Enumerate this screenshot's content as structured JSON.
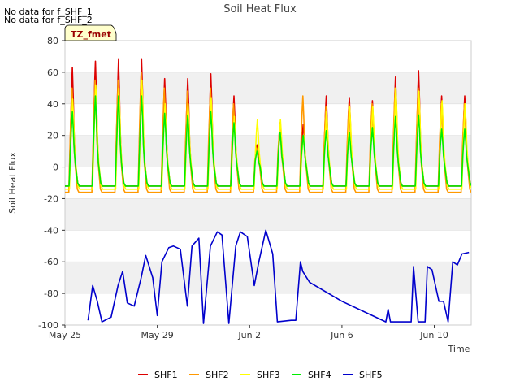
{
  "notes": [
    "No data for f_SHF_1",
    "No data for f_SHF_2"
  ],
  "chart_data": {
    "type": "line",
    "title": "Soil Heat Flux",
    "xlabel": "Time",
    "ylabel": "Soil Heat Flux",
    "annotation_box": "TZ_fmet",
    "ylim": [
      -100,
      80
    ],
    "yticks": [
      80,
      60,
      40,
      20,
      0,
      -20,
      -40,
      -60,
      -80,
      -100
    ],
    "xlim": [
      0,
      17.6
    ],
    "xticks": [
      {
        "day": 0,
        "label": "May 25"
      },
      {
        "day": 4,
        "label": "May 29"
      },
      {
        "day": 8,
        "label": "Jun 2"
      },
      {
        "day": 12,
        "label": "Jun 6"
      },
      {
        "day": 16,
        "label": "Jun 10"
      }
    ],
    "days": [
      0.3,
      1.3,
      2.3,
      3.3,
      4.3,
      5.3,
      6.3,
      7.3,
      8.3,
      9.3,
      10.3,
      11.3,
      12.3,
      13.3,
      14.3,
      15.3,
      16.3,
      17.3
    ],
    "series": [
      {
        "name": "SHF1",
        "color": "#dd0000",
        "min": -12,
        "peaks": [
          63,
          67,
          68,
          68,
          56,
          56,
          59,
          45,
          14,
          28,
          27,
          45,
          44,
          42,
          57,
          61,
          45,
          45
        ]
      },
      {
        "name": "SHF2",
        "color": "#ff9900",
        "min": -16,
        "peaks": [
          50,
          55,
          55,
          60,
          50,
          48,
          50,
          40,
          12,
          25,
          45,
          38,
          40,
          40,
          50,
          50,
          40,
          40
        ]
      },
      {
        "name": "SHF3",
        "color": "#ffff00",
        "min": -14,
        "peaks": [
          43,
          52,
          50,
          55,
          40,
          40,
          44,
          32,
          30,
          30,
          20,
          35,
          38,
          38,
          50,
          48,
          42,
          40
        ]
      },
      {
        "name": "SHF4",
        "color": "#00ee00",
        "min": -12,
        "peaks": [
          35,
          45,
          45,
          45,
          34,
          33,
          35,
          28,
          10,
          22,
          20,
          23,
          22,
          25,
          32,
          33,
          24,
          24
        ]
      },
      {
        "name": "SHF5",
        "color": "#0000cc",
        "x": [
          1.0,
          1.2,
          1.4,
          1.6,
          2.0,
          2.3,
          2.5,
          2.7,
          3.0,
          3.3,
          3.5,
          3.8,
          4.0,
          4.2,
          4.5,
          4.7,
          5.0,
          5.3,
          5.5,
          5.8,
          6.0,
          6.3,
          6.6,
          6.8,
          7.1,
          7.4,
          7.6,
          7.9,
          8.2,
          8.4,
          8.7,
          9.0,
          9.2,
          9.8,
          10.0,
          10.2,
          10.3,
          10.6,
          12.0,
          13.9,
          14.0,
          14.1,
          14.2,
          15.0,
          15.1,
          15.3,
          15.6,
          15.7,
          15.9,
          16.2,
          16.4,
          16.6,
          16.8,
          17.0,
          17.2,
          17.5
        ],
        "y": [
          -97,
          -75,
          -85,
          -98,
          -95,
          -75,
          -66,
          -86,
          -88,
          -70,
          -56,
          -70,
          -94,
          -60,
          -51,
          -50,
          -52,
          -88,
          -50,
          -45,
          -99,
          -50,
          -41,
          -43,
          -99,
          -50,
          -41,
          -44,
          -75,
          -60,
          -40,
          -55,
          -98,
          -97,
          -97,
          -60,
          -66,
          -73,
          -85,
          -98,
          -90,
          -98,
          -98,
          -98,
          -63,
          -98,
          -98,
          -63,
          -65,
          -85,
          -85,
          -98,
          -60,
          -62,
          -55,
          -54
        ]
      }
    ]
  }
}
